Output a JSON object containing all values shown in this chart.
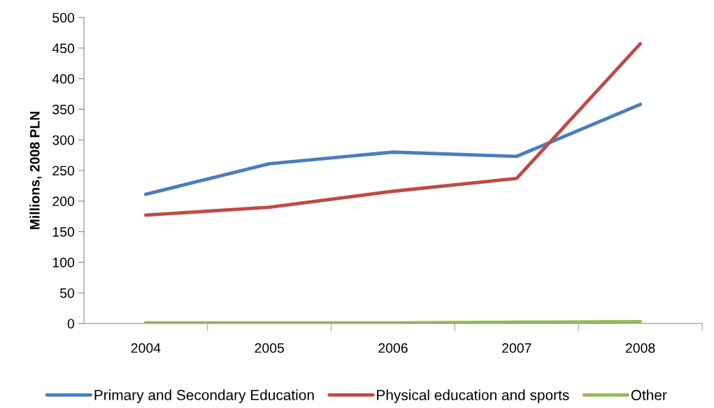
{
  "chart_data": {
    "type": "line",
    "ylabel": "Millions, 2008 PLN",
    "categories": [
      "2004",
      "2005",
      "2006",
      "2007",
      "2008"
    ],
    "series": [
      {
        "name": "Primary and Secondary Education",
        "color": "#4a7ebb",
        "values": [
          211,
          261,
          280,
          273,
          358
        ]
      },
      {
        "name": "Physical education and sports",
        "color": "#be4b48",
        "values": [
          177,
          190,
          216,
          237,
          457
        ]
      },
      {
        "name": "Other",
        "color": "#98b954",
        "values": [
          1,
          1,
          1,
          2,
          3
        ]
      }
    ],
    "ylim": [
      0,
      500
    ],
    "yticks": [
      0,
      50,
      100,
      150,
      200,
      250,
      300,
      350,
      400,
      450,
      500
    ],
    "grid": false,
    "legend": "bottom",
    "marker": "none",
    "line_style": "solid"
  }
}
